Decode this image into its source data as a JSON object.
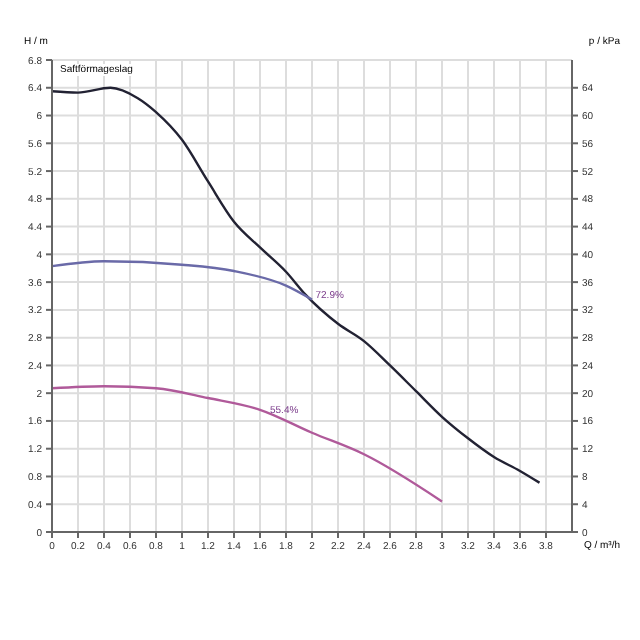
{
  "chart_data": {
    "type": "line",
    "xlabel": "Q / m³/h",
    "ylabel": "H / m",
    "y2label": "p / kPa",
    "xlim": [
      0,
      4
    ],
    "xticks": [
      0,
      0.2,
      0.4,
      0.6,
      0.8,
      1,
      1.2,
      1.4,
      1.6,
      1.8,
      2,
      2.2,
      2.4,
      2.6,
      2.8,
      3,
      3.2,
      3.4,
      3.6,
      3.8
    ],
    "ylim": [
      0,
      6.8
    ],
    "yticks": [
      0,
      0.4,
      0.8,
      1.2,
      1.6,
      2,
      2.4,
      2.8,
      3.2,
      3.6,
      4,
      4.4,
      4.8,
      5.2,
      5.6,
      6,
      6.4,
      6.8
    ],
    "y2lim": [
      0,
      68
    ],
    "y2ticks": [
      0,
      4,
      8,
      12,
      16,
      20,
      24,
      28,
      32,
      36,
      40,
      44,
      48,
      52,
      56,
      60,
      64
    ],
    "grid": true,
    "marker": "none",
    "line_style": "solid",
    "series": [
      {
        "color": "#222233",
        "x": [
          0,
          0.2,
          0.45,
          0.66,
          0.8,
          1,
          1.2,
          1.4,
          1.6,
          1.8,
          1.95,
          2.2,
          2.4,
          2.6,
          2.8,
          3,
          3.2,
          3.4,
          3.6,
          3.75
        ],
        "values": [
          6.35,
          6.33,
          6.4,
          6.25,
          6.05,
          5.65,
          5.05,
          4.47,
          4.1,
          3.75,
          3.42,
          3,
          2.75,
          2.4,
          2.03,
          1.66,
          1.35,
          1.08,
          0.88,
          0.71
        ]
      },
      {
        "color": "#6a6aa8",
        "x": [
          0,
          0.4,
          1,
          1.4,
          1.8,
          2.0
        ],
        "values": [
          3.83,
          3.9,
          3.85,
          3.76,
          3.55,
          3.35
        ]
      },
      {
        "color": "#b05a9a",
        "x": [
          0,
          0.4,
          0.8,
          1.2,
          1.6,
          2,
          2.4,
          3
        ],
        "values": [
          2.07,
          2.1,
          2.07,
          1.93,
          1.76,
          1.43,
          1.12,
          0.44
        ]
      }
    ],
    "annotations": [
      "Saftförmageslag",
      {
        "text": "72.9%",
        "x": 1.95,
        "y": 3.42
      },
      {
        "text": "55.4%",
        "x": 1.6,
        "y": 1.76
      }
    ]
  }
}
